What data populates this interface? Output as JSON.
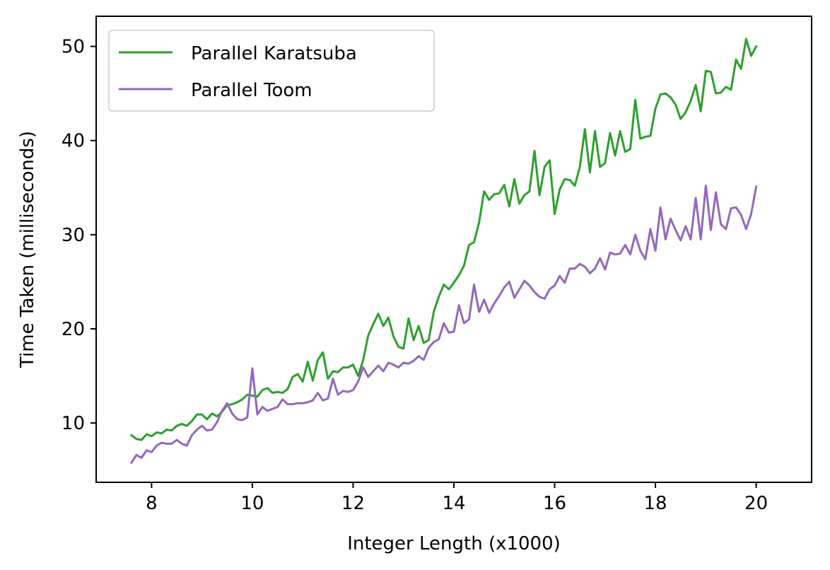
{
  "chart_data": {
    "type": "line",
    "title": "",
    "xlabel": "Integer Length (x1000)",
    "ylabel": "Time Taken (milliseconds)",
    "xlim": [
      6.9,
      21.1
    ],
    "ylim": [
      3.7,
      53.2
    ],
    "xticks": [
      8,
      10,
      12,
      14,
      16,
      18,
      20
    ],
    "xtick_labels": [
      "8",
      "10",
      "12",
      "14",
      "16",
      "18",
      "20"
    ],
    "yticks": [
      10,
      20,
      30,
      40,
      50
    ],
    "ytick_labels": [
      "10",
      "20",
      "30",
      "40",
      "50"
    ],
    "grid": false,
    "legend_position": "top-left",
    "x": [
      7.6,
      7.7,
      7.8,
      7.9,
      8.0,
      8.1,
      8.2,
      8.3,
      8.4,
      8.5,
      8.6,
      8.7,
      8.8,
      8.9,
      9.0,
      9.1,
      9.2,
      9.3,
      9.4,
      9.5,
      9.6,
      9.7,
      9.8,
      9.9,
      10.0,
      10.1,
      10.2,
      10.3,
      10.4,
      10.5,
      10.6,
      10.7,
      10.8,
      10.9,
      11.0,
      11.1,
      11.2,
      11.3,
      11.4,
      11.5,
      11.6,
      11.7,
      11.8,
      11.9,
      12.0,
      12.1,
      12.2,
      12.3,
      12.4,
      12.5,
      12.6,
      12.7,
      12.8,
      12.9,
      13.0,
      13.1,
      13.2,
      13.3,
      13.4,
      13.5,
      13.6,
      13.7,
      13.8,
      13.9,
      14.0,
      14.1,
      14.2,
      14.3,
      14.4,
      14.5,
      14.6,
      14.7,
      14.8,
      14.9,
      15.0,
      15.1,
      15.2,
      15.3,
      15.4,
      15.5,
      15.6,
      15.7,
      15.8,
      15.9,
      16.0,
      16.1,
      16.2,
      16.3,
      16.4,
      16.5,
      16.6,
      16.7,
      16.8,
      16.9,
      17.0,
      17.1,
      17.2,
      17.3,
      17.4,
      17.5,
      17.6,
      17.7,
      17.8,
      17.9,
      18.0,
      18.1,
      18.2,
      18.3,
      18.4,
      18.5,
      18.6,
      18.7,
      18.8,
      18.9,
      19.0,
      19.1,
      19.2,
      19.3,
      19.4,
      19.5,
      19.6,
      19.7,
      19.8,
      19.9,
      20.0
    ],
    "series": [
      {
        "name": "Parallel Karatsuba",
        "color": "#2ca02c",
        "values": [
          8.7,
          8.3,
          8.2,
          8.8,
          8.6,
          9.0,
          8.9,
          9.3,
          9.2,
          9.7,
          9.9,
          9.7,
          10.2,
          10.9,
          10.9,
          10.4,
          11.0,
          10.7,
          11.2,
          11.9,
          12.0,
          12.2,
          12.5,
          13.0,
          12.9,
          12.8,
          13.5,
          13.7,
          13.2,
          13.3,
          13.2,
          13.6,
          14.9,
          15.2,
          14.4,
          16.5,
          14.5,
          16.7,
          17.5,
          14.7,
          15.5,
          15.4,
          15.9,
          15.9,
          16.2,
          15.0,
          16.7,
          19.3,
          20.5,
          21.6,
          20.3,
          21.2,
          19.2,
          18.1,
          17.9,
          21.1,
          18.8,
          20.3,
          18.5,
          18.8,
          21.8,
          23.4,
          24.7,
          24.2,
          24.9,
          25.7,
          26.7,
          28.9,
          29.2,
          31.3,
          34.6,
          33.7,
          34.3,
          34.4,
          35.3,
          33.0,
          35.9,
          33.3,
          34.2,
          34.6,
          38.9,
          34.2,
          37.2,
          37.9,
          32.2,
          34.8,
          35.9,
          35.8,
          35.2,
          37.2,
          41.2,
          36.6,
          41.0,
          37.2,
          37.6,
          40.8,
          38.4,
          41.0,
          38.8,
          39.1,
          44.3,
          40.2,
          40.4,
          40.5,
          43.4,
          44.9,
          45.0,
          44.6,
          43.8,
          42.3,
          43.0,
          44.2,
          45.9,
          43.1,
          47.4,
          47.3,
          45.0,
          45.1,
          45.7,
          45.4,
          48.6,
          47.6,
          50.8,
          49.0,
          50.0
        ]
      },
      {
        "name": "Parallel Toom",
        "color": "#9467bd",
        "values": [
          5.8,
          6.6,
          6.3,
          7.1,
          6.9,
          7.6,
          7.9,
          7.8,
          7.8,
          8.2,
          7.8,
          7.6,
          8.7,
          9.3,
          9.7,
          9.2,
          9.3,
          10.1,
          11.3,
          12.1,
          11.0,
          10.4,
          10.3,
          10.6,
          15.8,
          10.9,
          11.7,
          11.3,
          11.5,
          11.7,
          12.5,
          12.0,
          12.0,
          12.1,
          12.1,
          12.2,
          12.4,
          13.2,
          12.4,
          12.6,
          14.7,
          13.0,
          13.4,
          13.3,
          13.5,
          14.4,
          15.9,
          14.9,
          15.5,
          16.1,
          15.5,
          16.4,
          16.2,
          15.9,
          16.4,
          16.3,
          16.6,
          17.1,
          16.7,
          18.0,
          18.6,
          18.9,
          20.6,
          19.6,
          19.7,
          22.5,
          20.6,
          21.0,
          24.7,
          21.8,
          23.1,
          21.7,
          22.7,
          23.5,
          24.4,
          25.0,
          23.3,
          24.2,
          25.1,
          24.6,
          23.9,
          23.4,
          23.2,
          24.2,
          24.6,
          25.6,
          24.9,
          26.4,
          26.4,
          26.9,
          26.6,
          25.9,
          26.4,
          27.5,
          26.3,
          28.1,
          27.9,
          28.0,
          28.9,
          27.9,
          30.0,
          28.3,
          27.4,
          30.6,
          28.3,
          32.9,
          29.5,
          31.7,
          30.5,
          29.4,
          30.9,
          29.5,
          33.9,
          29.5,
          35.2,
          30.5,
          34.5,
          31.1,
          30.6,
          32.8,
          32.9,
          32.1,
          30.6,
          32.2,
          35.1
        ]
      }
    ]
  }
}
